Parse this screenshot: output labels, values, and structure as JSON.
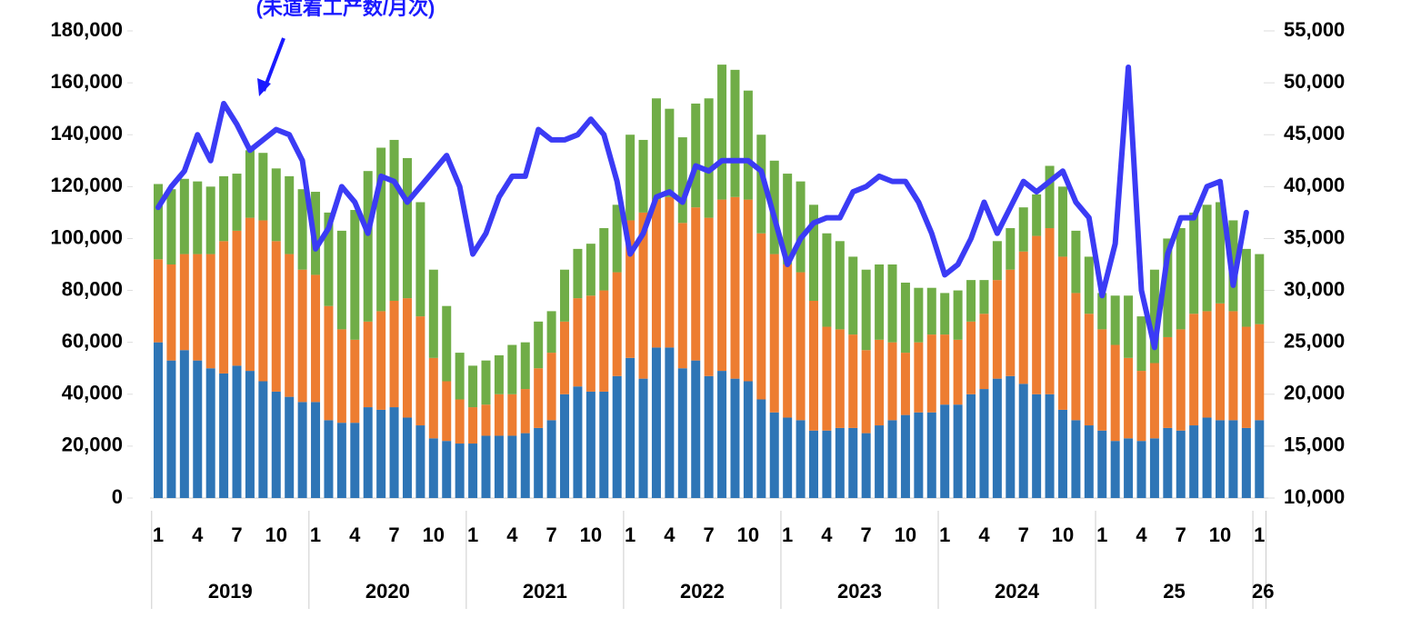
{
  "chart_data": {
    "type": "bar",
    "annotation": "(未道着工产数/月次)",
    "categories": [
      "1",
      null,
      null,
      "4",
      null,
      null,
      "7",
      null,
      null,
      "10",
      null,
      null,
      "1",
      null,
      null,
      "4",
      null,
      null,
      "7",
      null,
      null,
      "10",
      null,
      null,
      "1",
      null,
      null,
      "4",
      null,
      null,
      "7",
      null,
      null,
      "10",
      null,
      null,
      "1",
      null,
      null,
      "4",
      null,
      null,
      "7",
      null,
      null,
      "10",
      null,
      null,
      "1",
      null,
      null,
      "4",
      null,
      null,
      "7",
      null,
      null,
      "10",
      null,
      null,
      "1",
      null,
      null,
      "4",
      null,
      null,
      "7",
      null,
      null,
      "10",
      null,
      null,
      "1",
      null,
      null,
      "4",
      null,
      null,
      "7",
      null,
      null,
      "10",
      null,
      null,
      "1"
    ],
    "year_labels": [
      "2019",
      "2020",
      "2021",
      "2022",
      "2023",
      "2024",
      "25",
      "26"
    ],
    "stacked": true,
    "series": [
      {
        "color": "#2e75b6",
        "values": [
          60000,
          53000,
          57000,
          53000,
          50000,
          48000,
          51000,
          49000,
          45000,
          41000,
          39000,
          37000,
          37000,
          30000,
          29000,
          29000,
          35000,
          34000,
          35000,
          31000,
          28000,
          23000,
          22000,
          21000,
          21000,
          24000,
          24000,
          24000,
          25000,
          27000,
          30000,
          40000,
          43000,
          41000,
          41000,
          47000,
          54000,
          46000,
          58000,
          58000,
          50000,
          53000,
          47000,
          49000,
          46000,
          45000,
          38000,
          33000,
          31000,
          30000,
          26000,
          26000,
          27000,
          27000,
          25000,
          28000,
          30000,
          32000,
          33000,
          33000,
          36000,
          36000,
          40000,
          42000,
          46000,
          47000,
          44000,
          40000,
          40000,
          34000,
          30000,
          28000,
          26000,
          22000,
          23000,
          22000,
          23000,
          27000,
          26000,
          28000,
          31000,
          30000,
          30000,
          27000,
          30000
        ]
      },
      {
        "color": "#ed7d31",
        "values": [
          32000,
          37000,
          37000,
          41000,
          44000,
          51000,
          52000,
          59000,
          62000,
          58000,
          55000,
          51000,
          49000,
          44000,
          36000,
          32000,
          33000,
          38000,
          41000,
          46000,
          42000,
          31000,
          23000,
          17000,
          14000,
          12000,
          16000,
          16000,
          17000,
          23000,
          26000,
          28000,
          34000,
          37000,
          39000,
          40000,
          53000,
          64000,
          57000,
          58000,
          56000,
          59000,
          61000,
          66000,
          70000,
          70000,
          64000,
          61000,
          59000,
          57000,
          50000,
          40000,
          38000,
          36000,
          32000,
          33000,
          30000,
          24000,
          27000,
          30000,
          27000,
          25000,
          28000,
          29000,
          38000,
          41000,
          51000,
          61000,
          64000,
          59000,
          49000,
          43000,
          39000,
          37000,
          31000,
          27000,
          29000,
          35000,
          39000,
          43000,
          41000,
          45000,
          42000,
          39000,
          37000
        ]
      },
      {
        "color": "#70ad47",
        "values": [
          29000,
          29000,
          29000,
          28000,
          26000,
          25000,
          22000,
          26000,
          26000,
          28000,
          30000,
          31000,
          32000,
          36000,
          38000,
          50000,
          58000,
          63000,
          62000,
          54000,
          44000,
          34000,
          29000,
          18000,
          16000,
          17000,
          15000,
          19000,
          18000,
          18000,
          16000,
          20000,
          19000,
          20000,
          24000,
          26000,
          33000,
          28000,
          39000,
          34000,
          33000,
          40000,
          46000,
          52000,
          49000,
          42000,
          38000,
          36000,
          35000,
          35000,
          37000,
          36000,
          34000,
          30000,
          31000,
          29000,
          30000,
          27000,
          21000,
          18000,
          16000,
          19000,
          16000,
          13000,
          15000,
          16000,
          17000,
          16000,
          24000,
          27000,
          24000,
          22000,
          14000,
          19000,
          24000,
          21000,
          36000,
          38000,
          39000,
          39000,
          41000,
          39000,
          35000,
          30000,
          27000
        ]
      },
      {
        "type": "line",
        "axis": "y2",
        "color": "#3b3bf5",
        "values": [
          38000,
          40000,
          41500,
          45000,
          42500,
          48000,
          46000,
          43500,
          44500,
          45500,
          45000,
          42500,
          34000,
          36000,
          40000,
          38500,
          35500,
          41000,
          40500,
          38500,
          40000,
          41500,
          43000,
          40000,
          33500,
          35500,
          39000,
          41000,
          41000,
          45500,
          44500,
          44500,
          45000,
          46500,
          45000,
          40500,
          33500,
          35500,
          39000,
          39500,
          38500,
          42000,
          41500,
          42500,
          42500,
          42500,
          41500,
          37000,
          32500,
          35000,
          36500,
          37000,
          37000,
          39500,
          40000,
          41000,
          40500,
          40500,
          38500,
          35500,
          31500,
          32500,
          35000,
          38500,
          35500,
          38000,
          40500,
          39500,
          40500,
          41500,
          38500,
          37000,
          29500,
          34500,
          51500,
          30000,
          24500,
          33500,
          37000,
          37000,
          40000,
          40500,
          30500,
          37500,
          null
        ]
      }
    ],
    "ylim": [
      0,
      180000
    ],
    "yticks": [
      0,
      {
        "value": 20000,
        "label": "20,000"
      },
      {
        "value": 40000,
        "label": "40,000"
      },
      {
        "value": 60000,
        "label": "60,000"
      },
      {
        "value": 80000,
        "label": "80,000"
      },
      {
        "value": 100000,
        "label": "100,000"
      },
      {
        "value": 120000,
        "label": "120,000"
      },
      {
        "value": 140000,
        "label": "140,000"
      },
      {
        "value": 160000,
        "label": "160,000"
      },
      {
        "value": 180000,
        "label": "180,000"
      }
    ],
    "y2lim": [
      10000,
      55000
    ],
    "y2ticks": [
      {
        "value": 10000,
        "label": "10,000"
      },
      {
        "value": 15000,
        "label": "15,000"
      },
      {
        "value": 20000,
        "label": "20,000"
      },
      {
        "value": 25000,
        "label": "25,000"
      },
      {
        "value": 30000,
        "label": "30,000"
      },
      {
        "value": 35000,
        "label": "35,000"
      },
      {
        "value": 40000,
        "label": "40,000"
      },
      {
        "value": 45000,
        "label": "45,000"
      },
      {
        "value": 50000,
        "label": "50,000"
      },
      {
        "value": 55000,
        "label": "55,000"
      }
    ],
    "grid": false
  }
}
